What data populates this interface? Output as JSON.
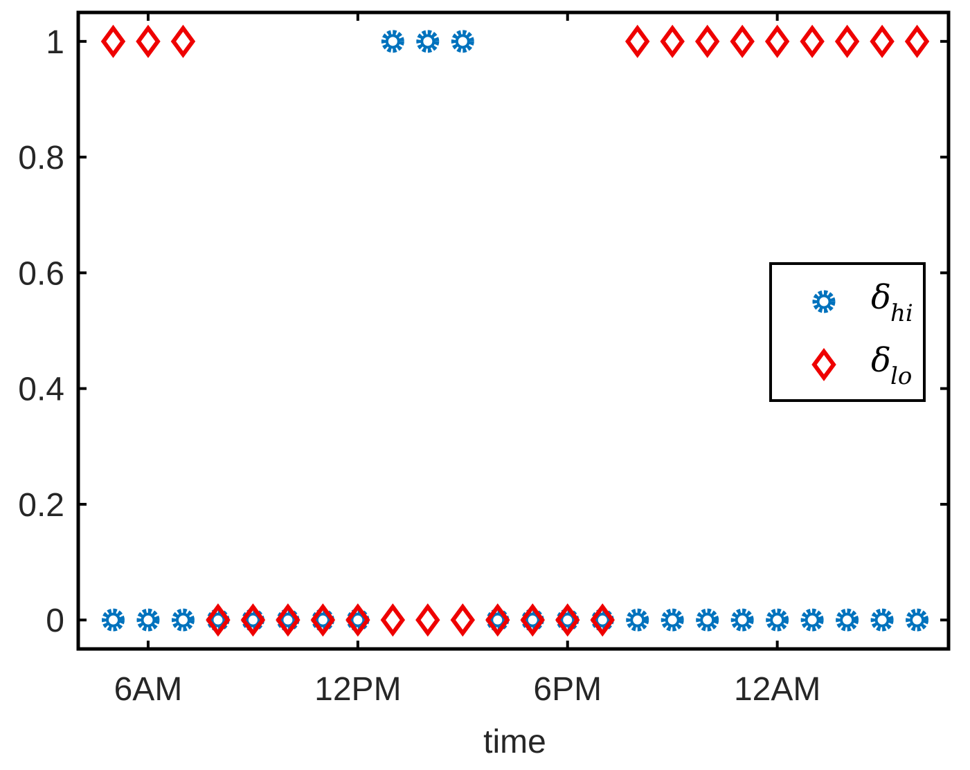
{
  "chart_data": {
    "type": "scatter",
    "xlabel": "time",
    "ylabel": "",
    "x_ticks": [
      {
        "value": 6,
        "label": "6AM"
      },
      {
        "value": 12,
        "label": "12PM"
      },
      {
        "value": 18,
        "label": "6PM"
      },
      {
        "value": 24,
        "label": "12AM"
      }
    ],
    "y_ticks": [
      {
        "value": 0,
        "label": "0"
      },
      {
        "value": 0.2,
        "label": "0.2"
      },
      {
        "value": 0.4,
        "label": "0.4"
      },
      {
        "value": 0.6,
        "label": "0.6"
      },
      {
        "value": 0.8,
        "label": "0.8"
      },
      {
        "value": 1,
        "label": "1"
      }
    ],
    "xlim": [
      4,
      28.9
    ],
    "ylim": [
      -0.05,
      1.05
    ],
    "grid": false,
    "legend_position": "right",
    "series": [
      {
        "name": "hi",
        "marker": "circle-star",
        "color": "#0072BD",
        "x": [
          5,
          6,
          7,
          8,
          9,
          10,
          11,
          12,
          13,
          14,
          15,
          16,
          17,
          18,
          19,
          20,
          21,
          22,
          23,
          24,
          25,
          26,
          27,
          28
        ],
        "y": [
          0,
          0,
          0,
          0,
          0,
          0,
          0,
          0,
          1,
          1,
          1,
          0,
          0,
          0,
          0,
          0,
          0,
          0,
          0,
          0,
          0,
          0,
          0,
          0
        ]
      },
      {
        "name": "lo",
        "marker": "diamond",
        "color": "#EE0000",
        "x": [
          5,
          6,
          7,
          8,
          9,
          10,
          11,
          12,
          13,
          14,
          15,
          16,
          17,
          18,
          19,
          20,
          21,
          22,
          23,
          24,
          25,
          26,
          27,
          28
        ],
        "y": [
          1,
          1,
          1,
          0,
          0,
          0,
          0,
          0,
          0,
          0,
          0,
          0,
          0,
          0,
          0,
          1,
          1,
          1,
          1,
          1,
          1,
          1,
          1,
          1
        ]
      }
    ],
    "legend": {
      "symbol": "δ",
      "entries": [
        {
          "subscript": "hi"
        },
        {
          "subscript": "lo"
        }
      ]
    }
  }
}
